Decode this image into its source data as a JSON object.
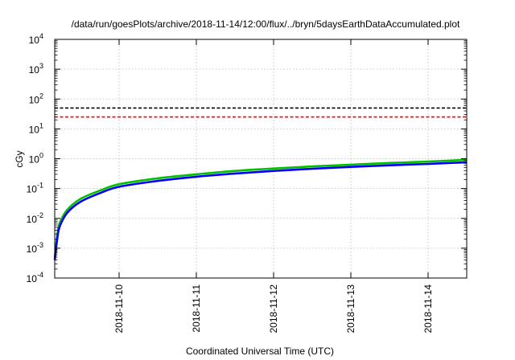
{
  "chart_data": {
    "type": "line",
    "title": "/data/run/goesPlots/archive/2018-11-14/12:00/flux/../bryn/5daysEarthDataAccumulated.plot",
    "xlabel": "Coordinated Universal Time (UTC)",
    "ylabel": "cGy",
    "yscale": "log",
    "ylim": [
      0.0001,
      10000
    ],
    "xlim": [
      "2018-11-09 04:00",
      "2018-11-14 12:00"
    ],
    "y_ticks": [
      {
        "value": 0.0001,
        "base": "10",
        "exp": "-4"
      },
      {
        "value": 0.001,
        "base": "10",
        "exp": "-3"
      },
      {
        "value": 0.01,
        "base": "10",
        "exp": "-2"
      },
      {
        "value": 0.1,
        "base": "10",
        "exp": "-1"
      },
      {
        "value": 1,
        "base": "10",
        "exp": "0"
      },
      {
        "value": 10,
        "base": "10",
        "exp": "1"
      },
      {
        "value": 100,
        "base": "10",
        "exp": "2"
      },
      {
        "value": 1000,
        "base": "10",
        "exp": "3"
      },
      {
        "value": 10000,
        "base": "10",
        "exp": "4"
      }
    ],
    "x_ticks": [
      "2018-11-10",
      "2018-11-11",
      "2018-11-12",
      "2018-11-13",
      "2018-11-14"
    ],
    "grid": true,
    "reference_lines": [
      {
        "value": 50,
        "color": "#000000",
        "dash": "dashed"
      },
      {
        "value": 25,
        "color": "#ff0000",
        "dash": "dashed"
      }
    ],
    "series": [
      {
        "color": "#00c000",
        "x": [
          "2018-11-09 04:00",
          "2018-11-09 05:00",
          "2018-11-09 06:00",
          "2018-11-09 08:00",
          "2018-11-09 12:00",
          "2018-11-09 18:00",
          "2018-11-10 00:00",
          "2018-11-10 12:00",
          "2018-11-11 00:00",
          "2018-11-11 12:00",
          "2018-11-12 00:00",
          "2018-11-12 12:00",
          "2018-11-13 00:00",
          "2018-11-13 12:00",
          "2018-11-14 00:00",
          "2018-11-14 12:00"
        ],
        "values": [
          0.0005,
          0.004,
          0.009,
          0.02,
          0.045,
          0.085,
          0.14,
          0.22,
          0.3,
          0.39,
          0.47,
          0.55,
          0.63,
          0.72,
          0.8,
          0.92
        ]
      },
      {
        "color": "#0000ff",
        "x": [
          "2018-11-09 04:00",
          "2018-11-09 05:00",
          "2018-11-09 06:00",
          "2018-11-09 08:00",
          "2018-11-09 12:00",
          "2018-11-09 18:00",
          "2018-11-10 00:00",
          "2018-11-10 12:00",
          "2018-11-11 00:00",
          "2018-11-11 12:00",
          "2018-11-12 00:00",
          "2018-11-12 12:00",
          "2018-11-13 00:00",
          "2018-11-13 12:00",
          "2018-11-14 00:00",
          "2018-11-14 12:00"
        ],
        "values": [
          0.0004,
          0.003,
          0.007,
          0.016,
          0.036,
          0.07,
          0.115,
          0.18,
          0.25,
          0.32,
          0.39,
          0.46,
          0.53,
          0.6,
          0.67,
          0.76
        ]
      }
    ]
  }
}
